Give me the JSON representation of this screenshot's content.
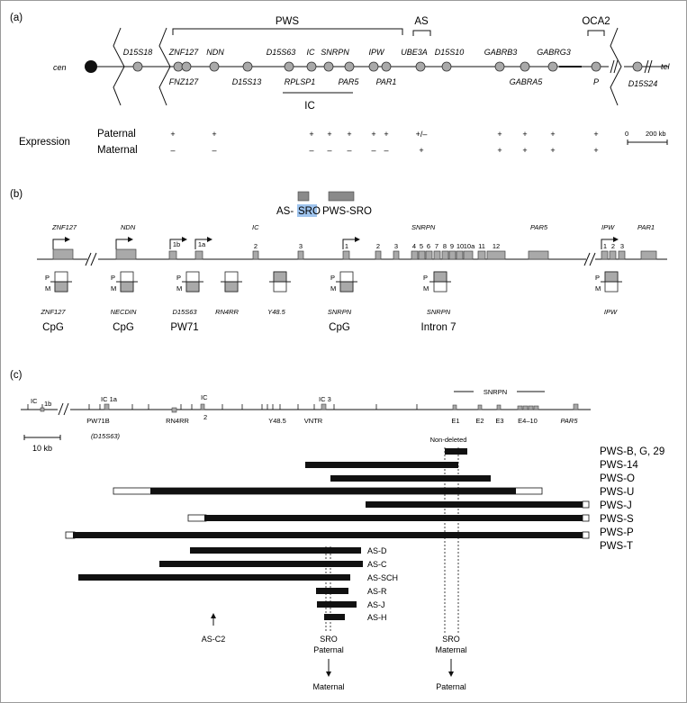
{
  "colors": {
    "gene": "#a9a9a9",
    "sro_highlight": "#9fc4ee",
    "line": "#111111"
  },
  "panel_a": {
    "label": "(a)",
    "region_pws": "PWS",
    "region_as": "AS",
    "region_oca2": "OCA2",
    "cen": "cen",
    "tel": "tel",
    "genes_top": [
      "D15S18",
      "ZNF127",
      "NDN",
      "D15S63",
      "IC",
      "SNRPN",
      "IPW",
      "UBE3A",
      "D15S10",
      "GABRB3",
      "GABRG3"
    ],
    "genes_bottom": [
      "FNZ127",
      "D15S13",
      "RPLSP1",
      "PAR5",
      "PAR1",
      "GABRA5",
      "P",
      "D15S24"
    ],
    "ic_label": "IC",
    "expression_label": "Expression",
    "paternal_label": "Paternal",
    "maternal_label": "Maternal",
    "paternal_marks": [
      "+",
      "+",
      "+",
      "+",
      "+",
      "+",
      "+",
      "+/–",
      "+",
      "+",
      "+",
      "+"
    ],
    "maternal_marks": [
      "–",
      "–",
      "–",
      "–",
      "–",
      "–",
      "–",
      "+",
      "+",
      "+",
      "+",
      "+"
    ],
    "scale_zero": "0",
    "scale_label": "200 kb"
  },
  "panel_b": {
    "label": "(b)",
    "as_sro": "AS-",
    "as_sro_highlight": "SRO",
    "pws_sro": "PWS-SRO",
    "genes": [
      "ZNF127",
      "NDN",
      "IC",
      "SNRPN",
      "PAR5",
      "IPW",
      "PAR1"
    ],
    "exon_labels": [
      "1b",
      "1a",
      "2",
      "3",
      "1",
      "2",
      "3",
      "4",
      "5",
      "6",
      "7",
      "8",
      "9",
      "10",
      "10a",
      "11",
      "12",
      "1",
      "2",
      "3"
    ],
    "p_label": "P",
    "m_label": "M",
    "loci": [
      "ZNF127",
      "NECDIN",
      "D15S63",
      "RN4RR",
      "Y48.5",
      "SNRPN",
      "SNRPN",
      "IPW"
    ],
    "loci_notes": [
      "CpG",
      "CpG",
      "PW71",
      "CpG",
      "Intron 7"
    ]
  },
  "panel_c": {
    "label": "(c)",
    "ic_1b": "IC",
    "ic_1b_sub": "1b",
    "ic_1a": "IC 1a",
    "ic_2": "IC",
    "ic_2_sub": "2",
    "ic_3": "IC 3",
    "snrpn": "SNRPN",
    "markers": [
      "PW71B",
      "(D15S63)",
      "RN4RR",
      "Y48.5",
      "VNTR",
      "E1",
      "E2",
      "E3",
      "E4–10",
      "PAR5"
    ],
    "scale_label": "10 kb",
    "non_deleted": "Non-deleted",
    "pws_deletions": [
      "PWS-B, G, 29",
      "PWS-14",
      "PWS-O",
      "PWS-U",
      "PWS-J",
      "PWS-S",
      "PWS-P",
      "PWS-T"
    ],
    "as_deletions": [
      "AS-D",
      "AS-C",
      "AS-SCH",
      "AS-R",
      "AS-J",
      "AS-H"
    ],
    "as_c2": "AS-C2",
    "sro_paternal": [
      "SRO",
      "Paternal",
      "Maternal"
    ],
    "sro_maternal": [
      "SRO",
      "Maternal",
      "Paternal"
    ]
  }
}
